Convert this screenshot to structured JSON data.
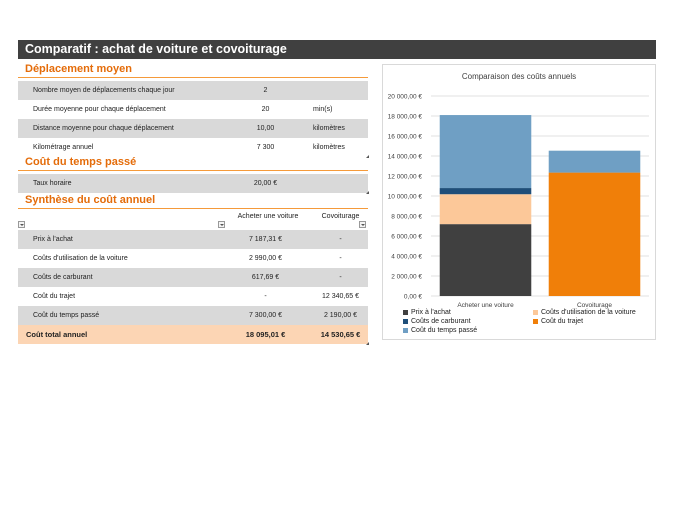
{
  "title": "Comparatif : achat de voiture et covoiturage",
  "deplacement": {
    "header": "Déplacement moyen",
    "rows": [
      {
        "label": "Nombre moyen de déplacements chaque jour",
        "value": "2",
        "unit": ""
      },
      {
        "label": "Durée moyenne pour chaque déplacement",
        "value": "20",
        "unit": "min(s)"
      },
      {
        "label": "Distance moyenne pour chaque déplacement",
        "value": "10,00",
        "unit": "kilomètres"
      },
      {
        "label": "Kilométrage annuel",
        "value": "7 300",
        "unit": "kilomètres"
      }
    ]
  },
  "temps": {
    "header": "Coût du temps passé",
    "rows": [
      {
        "label": "Taux horaire",
        "value": "20,00 €"
      }
    ]
  },
  "synthese": {
    "header": "Synthèse du coût annuel",
    "col1": "Acheter une voiture",
    "col2": "Covoiturage",
    "rows": [
      {
        "label": "Prix à l'achat",
        "v1": "7 187,31 €",
        "v2": "-"
      },
      {
        "label": "Coûts d'utilisation de la voiture",
        "v1": "2 990,00 €",
        "v2": "-"
      },
      {
        "label": "Coûts de carburant",
        "v1": "617,69 €",
        "v2": "-"
      },
      {
        "label": "Coût du trajet",
        "v1": "-",
        "v2": "12 340,65 €"
      },
      {
        "label": "Coût du temps passé",
        "v1": "7 300,00 €",
        "v2": "2 190,00 €"
      }
    ],
    "total": {
      "label": "Coût total annuel",
      "v1": "18 095,01 €",
      "v2": "14 530,65 €"
    }
  },
  "colors": {
    "title_bg": "#404040",
    "section_text": "#e46c0a",
    "shade": "#d9d9d9",
    "total_row": "#fcd5b4"
  },
  "chart_data": {
    "type": "bar",
    "stacked": true,
    "title": "Comparaison des coûts annuels",
    "categories": [
      "Acheter une voiture",
      "Covoiturage"
    ],
    "ylim": [
      0,
      20000
    ],
    "yticks": [
      "0,00 €",
      "2 000,00 €",
      "4 000,00 €",
      "6 000,00 €",
      "8 000,00 €",
      "10 000,00 €",
      "12 000,00 €",
      "14 000,00 €",
      "16 000,00 €",
      "18 000,00 €",
      "20 000,00 €"
    ],
    "grid": true,
    "legend_position": "bottom",
    "series": [
      {
        "name": "Prix à l'achat",
        "values": [
          7187.31,
          0
        ],
        "color": "#404040"
      },
      {
        "name": "Coûts d'utilisation de la voiture",
        "values": [
          2990.0,
          0
        ],
        "color": "#fcc899"
      },
      {
        "name": "Coûts de carburant",
        "values": [
          617.69,
          0
        ],
        "color": "#1f4e79"
      },
      {
        "name": "Coût du trajet",
        "values": [
          0,
          12340.65
        ],
        "color": "#f07f09"
      },
      {
        "name": "Coût du temps passé",
        "values": [
          7300.0,
          2190.0
        ],
        "color": "#6f9fc4"
      }
    ]
  }
}
